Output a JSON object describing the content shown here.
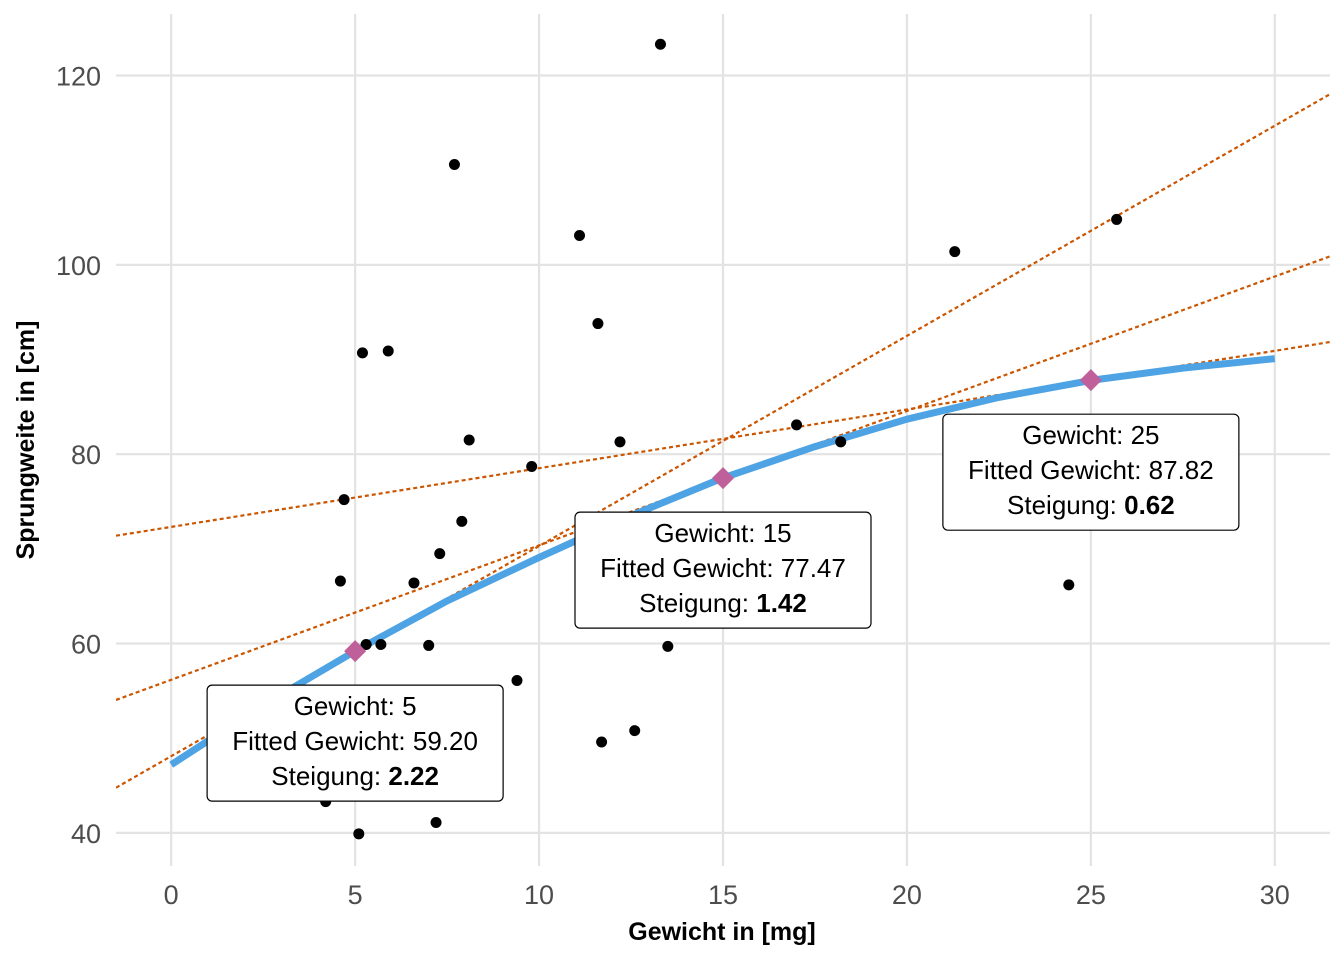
{
  "chart_data": {
    "type": "scatter",
    "xlabel": "Gewicht in [mg]",
    "ylabel": "Sprungweite in [cm]",
    "xlim": [
      -1.5,
      31.5
    ],
    "ylim": [
      36.5,
      126.5
    ],
    "x_ticks": [
      0,
      5,
      10,
      15,
      20,
      25,
      30
    ],
    "y_ticks": [
      40,
      60,
      80,
      100,
      120
    ],
    "grid": true,
    "colors": {
      "points": "#000000",
      "fit_line": "#4da3e3",
      "tangent_lines": "#cc5500",
      "markers": "#c0609a",
      "gridlines": "#e3e3e3"
    },
    "points": [
      {
        "x": 4.2,
        "y": 43.3
      },
      {
        "x": 5.1,
        "y": 39.9
      },
      {
        "x": 7.2,
        "y": 41.1
      },
      {
        "x": 4.6,
        "y": 66.6
      },
      {
        "x": 4.7,
        "y": 75.2
      },
      {
        "x": 5.2,
        "y": 90.7
      },
      {
        "x": 5.3,
        "y": 59.9
      },
      {
        "x": 5.7,
        "y": 59.9
      },
      {
        "x": 5.9,
        "y": 90.9
      },
      {
        "x": 6.6,
        "y": 66.4
      },
      {
        "x": 7.0,
        "y": 59.8
      },
      {
        "x": 7.3,
        "y": 69.5
      },
      {
        "x": 7.7,
        "y": 110.6
      },
      {
        "x": 7.9,
        "y": 72.9
      },
      {
        "x": 8.1,
        "y": 81.5
      },
      {
        "x": 9.4,
        "y": 56.1
      },
      {
        "x": 9.8,
        "y": 78.7
      },
      {
        "x": 11.1,
        "y": 103.1
      },
      {
        "x": 11.6,
        "y": 93.8
      },
      {
        "x": 11.7,
        "y": 49.6
      },
      {
        "x": 12.2,
        "y": 81.3
      },
      {
        "x": 12.6,
        "y": 50.8
      },
      {
        "x": 13.3,
        "y": 123.3
      },
      {
        "x": 13.5,
        "y": 59.7
      },
      {
        "x": 15.6,
        "y": 62.3
      },
      {
        "x": 16.5,
        "y": 62.7
      },
      {
        "x": 17.0,
        "y": 83.1
      },
      {
        "x": 18.2,
        "y": 81.3
      },
      {
        "x": 21.3,
        "y": 101.4
      },
      {
        "x": 24.4,
        "y": 66.2
      },
      {
        "x": 25.7,
        "y": 104.8
      }
    ],
    "fit_curve": {
      "x": [
        0,
        2.5,
        5,
        7.5,
        10,
        12.5,
        15,
        17.5,
        20,
        22.5,
        25,
        27.5,
        30
      ],
      "y": [
        47.2,
        53.5,
        59.2,
        64.5,
        69.1,
        73.5,
        77.5,
        80.8,
        83.7,
        86.0,
        87.8,
        89.1,
        90.1
      ]
    },
    "tangents": [
      {
        "x0": 5,
        "y0": 59.2,
        "slope": 2.22
      },
      {
        "x0": 15,
        "y0": 77.47,
        "slope": 1.42
      },
      {
        "x0": 25,
        "y0": 87.82,
        "slope": 0.62
      }
    ],
    "annotations": [
      {
        "x": 5,
        "y": 59.2,
        "line1": "Gewicht: 5",
        "line2": "Fitted Gewicht: 59.20",
        "slope_prefix": "Steigung: ",
        "slope_value": "2.22"
      },
      {
        "x": 15,
        "y": 77.47,
        "line1": "Gewicht: 15",
        "line2": "Fitted Gewicht: 77.47",
        "slope_prefix": "Steigung: ",
        "slope_value": "1.42"
      },
      {
        "x": 25,
        "y": 87.82,
        "line1": "Gewicht: 25",
        "line2": "Fitted Gewicht: 87.82",
        "slope_prefix": "Steigung: ",
        "slope_value": "0.62"
      }
    ]
  }
}
